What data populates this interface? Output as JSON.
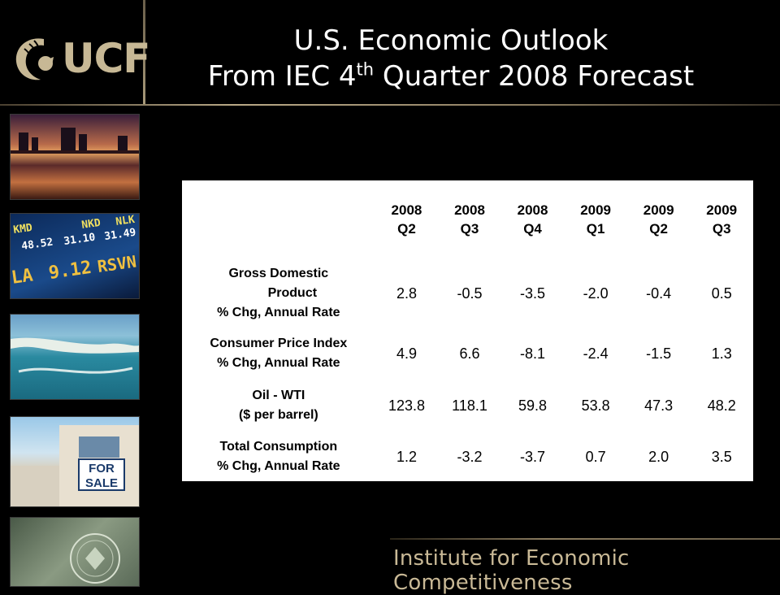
{
  "logo": {
    "text": "UCF"
  },
  "title": {
    "line1": "U.S. Economic Outlook",
    "line2_pre": "From IEC 4",
    "line2_sup": "th",
    "line2_post": " Quarter 2008 Forecast"
  },
  "photos": [
    {
      "icon": "city-skyline-sunset-photo"
    },
    {
      "icon": "stock-ticker-photo"
    },
    {
      "icon": "coastline-aerial-photo"
    },
    {
      "icon": "for-sale-house-photo"
    },
    {
      "icon": "dollar-bill-photo"
    }
  ],
  "photo_texts": {
    "ticker": [
      "KMD",
      "NKD",
      "NLK",
      "48.52",
      "31.10",
      "31.49",
      "LA",
      "9.12",
      "RSVN"
    ],
    "sale_sign": [
      "FOR",
      "SALE"
    ]
  },
  "table": {
    "headers": [
      {
        "year": "2008",
        "quarter": "Q2"
      },
      {
        "year": "2008",
        "quarter": "Q3"
      },
      {
        "year": "2008",
        "quarter": "Q4"
      },
      {
        "year": "2009",
        "quarter": "Q1"
      },
      {
        "year": "2009",
        "quarter": "Q2"
      },
      {
        "year": "2009",
        "quarter": "Q3"
      }
    ],
    "rows": [
      {
        "label1": "Gross Domestic",
        "label2": "Product",
        "label3": "% Chg, Annual Rate",
        "values": [
          "2.8",
          "-0.5",
          "-3.5",
          "-2.0",
          "-0.4",
          "0.5"
        ]
      },
      {
        "label1": "Consumer Price Index",
        "label2": "% Chg, Annual Rate",
        "values": [
          "4.9",
          "6.6",
          "-8.1",
          "-2.4",
          "-1.5",
          "1.3"
        ]
      },
      {
        "label1": "Oil - WTI",
        "label2": "($ per barrel)",
        "values": [
          "123.8",
          "118.1",
          "59.8",
          "53.8",
          "47.3",
          "48.2"
        ]
      },
      {
        "label1": "Total Consumption",
        "label2": "% Chg, Annual Rate",
        "values": [
          "1.2",
          "-3.2",
          "-3.7",
          "0.7",
          "2.0",
          "3.5"
        ]
      }
    ]
  },
  "footer": {
    "text": "Institute for Economic Competitiveness"
  }
}
